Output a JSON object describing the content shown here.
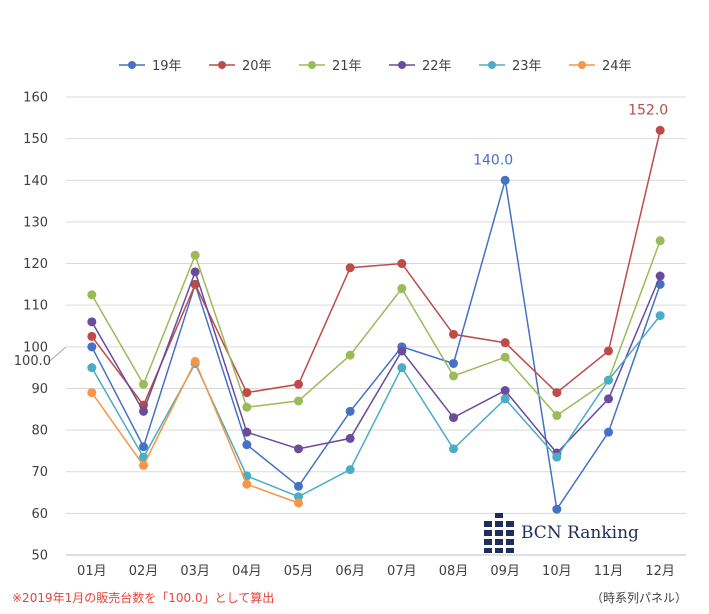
{
  "chart_data": {
    "type": "line",
    "categories": [
      "01月",
      "02月",
      "03月",
      "04月",
      "05月",
      "06月",
      "07月",
      "08月",
      "09月",
      "10月",
      "11月",
      "12月"
    ],
    "ylim": [
      50,
      160
    ],
    "yticks": [
      50,
      60,
      70,
      80,
      90,
      100,
      110,
      120,
      130,
      140,
      150,
      160
    ],
    "grid": true,
    "legend_position": "top",
    "reference_value": 100,
    "reference_label": "100.0",
    "series": [
      {
        "name": "19年",
        "color": "#4472c4",
        "values": [
          100.0,
          76.0,
          115.0,
          76.5,
          66.5,
          84.5,
          100.0,
          96.0,
          140.0,
          61.0,
          79.5,
          115.0
        ]
      },
      {
        "name": "20年",
        "color": "#be4b48",
        "values": [
          102.5,
          86.0,
          115.0,
          89.0,
          91.0,
          119.0,
          120.0,
          103.0,
          101.0,
          89.0,
          99.0,
          152.0
        ]
      },
      {
        "name": "21年",
        "color": "#9bbb59",
        "values": [
          112.5,
          91.0,
          122.0,
          85.5,
          87.0,
          98.0,
          114.0,
          93.0,
          97.5,
          83.5,
          92.0,
          125.5
        ]
      },
      {
        "name": "22年",
        "color": "#6a4c9c",
        "values": [
          106.0,
          84.5,
          118.0,
          79.5,
          75.5,
          78.0,
          99.0,
          83.0,
          89.5,
          74.5,
          87.5,
          117.0
        ]
      },
      {
        "name": "23年",
        "color": "#4bacc6",
        "values": [
          95.0,
          73.5,
          96.0,
          69.0,
          64.0,
          70.5,
          95.0,
          75.5,
          87.5,
          73.5,
          92.0,
          107.5
        ]
      },
      {
        "name": "24年",
        "color": "#f79646",
        "values": [
          89.0,
          71.5,
          96.5,
          67.0,
          62.5,
          null,
          null,
          null,
          null,
          null,
          null,
          null
        ]
      }
    ],
    "annotations": [
      {
        "series": "19年",
        "category": "09月",
        "text": "140.0"
      },
      {
        "series": "20年",
        "category": "12月",
        "text": "152.0"
      }
    ]
  },
  "footnote": "※2019年1月の販売台数を「100.0」として算出",
  "source": "（時系列パネル）",
  "brand": "BCN Ranking"
}
